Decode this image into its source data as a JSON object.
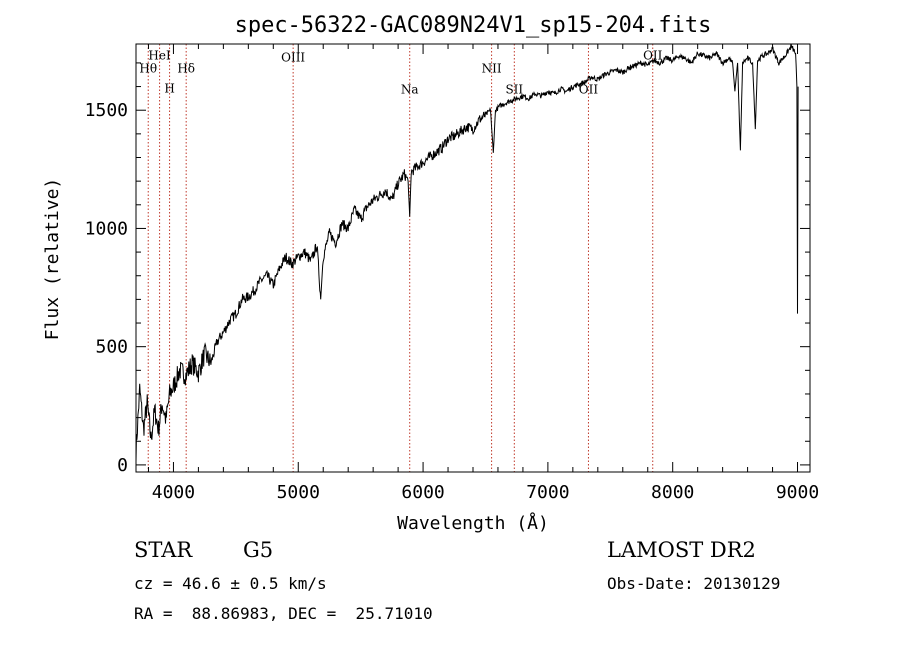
{
  "chart_data": {
    "type": "line",
    "title": "spec-56322-GAC089N24V1_sp15-204.fits",
    "xlabel": "Wavelength (Å)",
    "ylabel": "Flux (relative)",
    "xlim": [
      3700,
      9100
    ],
    "ylim": [
      -30,
      1780
    ],
    "xticks": [
      {
        "value": 4000,
        "label": "4000"
      },
      {
        "value": 5000,
        "label": "5000"
      },
      {
        "value": 6000,
        "label": "6000"
      },
      {
        "value": 7000,
        "label": "7000"
      },
      {
        "value": 8000,
        "label": "8000"
      },
      {
        "value": 9000,
        "label": "9000"
      }
    ],
    "yticks": [
      {
        "value": 0,
        "label": "0"
      },
      {
        "value": 500,
        "label": "500"
      },
      {
        "value": 1000,
        "label": "1000"
      },
      {
        "value": 1500,
        "label": "1500"
      }
    ],
    "lines": [
      {
        "label": "Hθ",
        "x": 3798,
        "label_y": 1660
      },
      {
        "label": "HeI",
        "x": 3889,
        "label_y": 1715
      },
      {
        "label": "H",
        "x": 3969,
        "label_y": 1575
      },
      {
        "label": "Hδ",
        "x": 4102,
        "label_y": 1660
      },
      {
        "label": "OIII",
        "x": 4959,
        "label_y": 1705
      },
      {
        "label": "Na",
        "x": 5893,
        "label_y": 1570
      },
      {
        "label": "NII",
        "x": 6549,
        "label_y": 1660
      },
      {
        "label": "SII",
        "x": 6731,
        "label_y": 1570
      },
      {
        "label": "OII",
        "x": 7325,
        "label_y": 1570
      },
      {
        "label": "OII",
        "x": 7840,
        "label_y": 1715
      }
    ],
    "series": [
      {
        "name": "flux",
        "x": [
          3700,
          3730,
          3760,
          3790,
          3820,
          3850,
          3880,
          3910,
          3940,
          3970,
          4000,
          4050,
          4100,
          4150,
          4200,
          4250,
          4300,
          4350,
          4400,
          4450,
          4500,
          4550,
          4600,
          4650,
          4700,
          4750,
          4800,
          4850,
          4900,
          4950,
          5000,
          5050,
          5100,
          5150,
          5180,
          5200,
          5250,
          5300,
          5350,
          5400,
          5450,
          5500,
          5550,
          5600,
          5650,
          5700,
          5750,
          5800,
          5850,
          5880,
          5893,
          5905,
          5950,
          6000,
          6050,
          6100,
          6150,
          6200,
          6250,
          6300,
          6350,
          6400,
          6450,
          6500,
          6540,
          6563,
          6580,
          6620,
          6660,
          6700,
          6750,
          6800,
          6850,
          6900,
          6950,
          7000,
          7050,
          7100,
          7150,
          7200,
          7250,
          7300,
          7350,
          7400,
          7450,
          7500,
          7550,
          7600,
          7650,
          7700,
          7750,
          7800,
          7850,
          7900,
          7950,
          8000,
          8050,
          8100,
          8150,
          8200,
          8250,
          8300,
          8350,
          8400,
          8450,
          8480,
          8498,
          8520,
          8542,
          8560,
          8600,
          8640,
          8662,
          8680,
          8720,
          8760,
          8800,
          8850,
          8900,
          8950,
          8985,
          8995,
          9000,
          9005
        ],
        "y": [
          60,
          320,
          150,
          260,
          110,
          230,
          150,
          260,
          190,
          300,
          330,
          400,
          380,
          430,
          390,
          470,
          430,
          520,
          560,
          610,
          640,
          700,
          710,
          740,
          780,
          800,
          760,
          830,
          880,
          850,
          880,
          900,
          860,
          930,
          700,
          880,
          980,
          940,
          1020,
          1000,
          1080,
          1040,
          1090,
          1120,
          1140,
          1160,
          1120,
          1190,
          1230,
          1200,
          1050,
          1240,
          1260,
          1280,
          1300,
          1320,
          1340,
          1380,
          1390,
          1410,
          1430,
          1420,
          1460,
          1480,
          1500,
          1320,
          1500,
          1520,
          1530,
          1540,
          1550,
          1560,
          1550,
          1570,
          1560,
          1580,
          1570,
          1590,
          1580,
          1600,
          1610,
          1620,
          1640,
          1630,
          1650,
          1660,
          1670,
          1660,
          1680,
          1690,
          1700,
          1690,
          1710,
          1700,
          1720,
          1710,
          1730,
          1720,
          1700,
          1740,
          1730,
          1720,
          1740,
          1700,
          1720,
          1700,
          1580,
          1700,
          1330,
          1700,
          1720,
          1700,
          1420,
          1710,
          1730,
          1740,
          1760,
          1700,
          1730,
          1770,
          1740,
          1600,
          640,
          1600
        ]
      }
    ]
  },
  "info": {
    "object_class": "STAR",
    "subclass": "G5",
    "survey": "LAMOST DR2",
    "redshift": "cz = 46.6 ± 0.5 km/s",
    "obs_date": "Obs-Date: 20130129",
    "coords": "RA =  88.86983, DEC =  25.71010"
  }
}
